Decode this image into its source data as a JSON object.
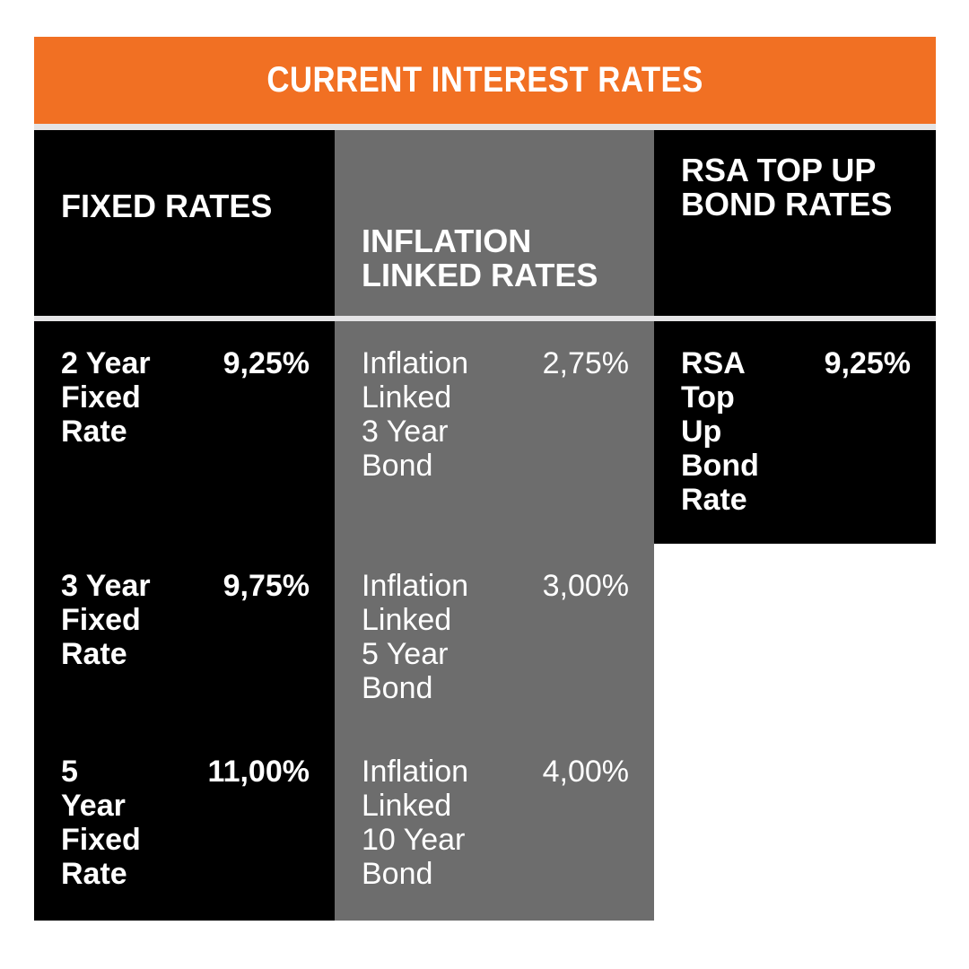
{
  "chart_data": {
    "type": "table",
    "title": "CURRENT INTEREST RATES",
    "columns": [
      {
        "header": "FIXED RATES",
        "rows": [
          {
            "label": "2 Year\nFixed\nRate",
            "value": "9,25%"
          },
          {
            "label": "3 Year\nFixed\nRate",
            "value": "9,75%"
          },
          {
            "label": "5\nYear\nFixed\nRate",
            "value": "11,00%"
          }
        ]
      },
      {
        "header": "INFLATION\nLINKED RATES",
        "rows": [
          {
            "label": "Inflation\nLinked\n3 Year\nBond",
            "value": "2,75%"
          },
          {
            "label": "Inflation\nLinked\n5 Year\nBond",
            "value": "3,00%"
          },
          {
            "label": "Inflation\nLinked\n10 Year\nBond",
            "value": "4,00%"
          }
        ]
      },
      {
        "header": "RSA TOP UP\nBOND RATES",
        "rows": [
          {
            "label": "RSA\nTop\nUp\nBond\nRate",
            "value": "9,25%"
          }
        ]
      }
    ],
    "layout": {
      "legend": "none",
      "grid": "off"
    }
  },
  "colors": {
    "banner_orange": "#F17023",
    "column_black": "#000000",
    "column_gray": "#6D6D6D",
    "separator_light": "#E5E4E6",
    "text_white": "#FFFFFF",
    "page_background": "#FFFFFF"
  }
}
